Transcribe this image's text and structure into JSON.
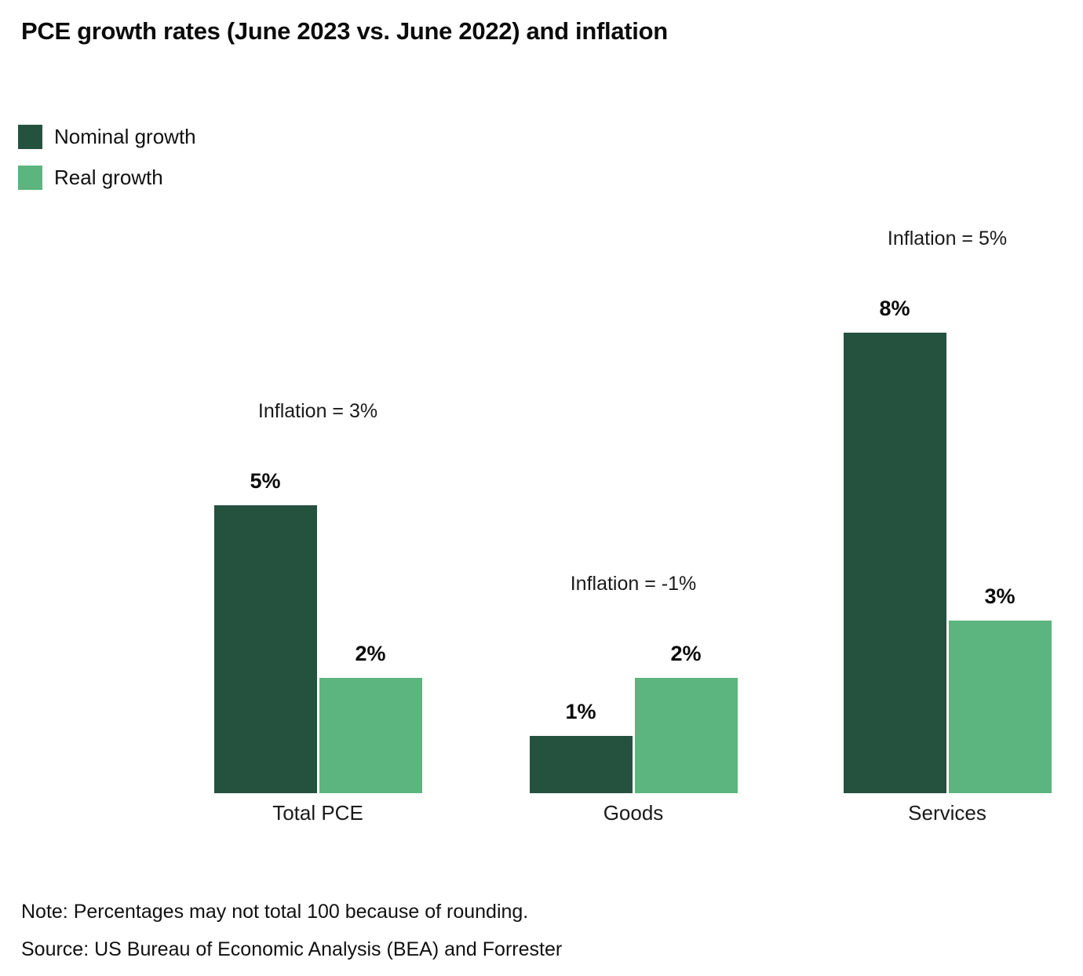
{
  "title": "PCE growth rates (June 2023 vs. June 2022) and inflation",
  "legend": {
    "items": [
      {
        "label": "Nominal growth",
        "color": "#25523F"
      },
      {
        "label": "Real growth",
        "color": "#5CB57E"
      }
    ]
  },
  "chart_data": {
    "type": "bar",
    "title": "PCE growth rates (June 2023 vs. June 2022) and inflation",
    "categories": [
      "Total PCE",
      "Goods",
      "Services"
    ],
    "series": [
      {
        "name": "Nominal growth",
        "color": "#25523F",
        "values": [
          5,
          1,
          8
        ]
      },
      {
        "name": "Real growth",
        "color": "#5CB57E",
        "values": [
          2,
          2,
          3
        ]
      }
    ],
    "value_labels": [
      [
        "5%",
        "1%",
        "8%"
      ],
      [
        "2%",
        "2%",
        "3%"
      ]
    ],
    "annotations": [
      "Inflation = 3%",
      "Inflation = -1%",
      "Inflation = 5%"
    ],
    "unit": "%",
    "ylim": [
      0,
      8
    ],
    "grid": false,
    "axis_visible": false,
    "legend_position": "top-left"
  },
  "footer": {
    "note": "Note: Percentages may not total 100 because of rounding.",
    "source": "Source: US Bureau of Economic Analysis (BEA) and Forrester"
  }
}
